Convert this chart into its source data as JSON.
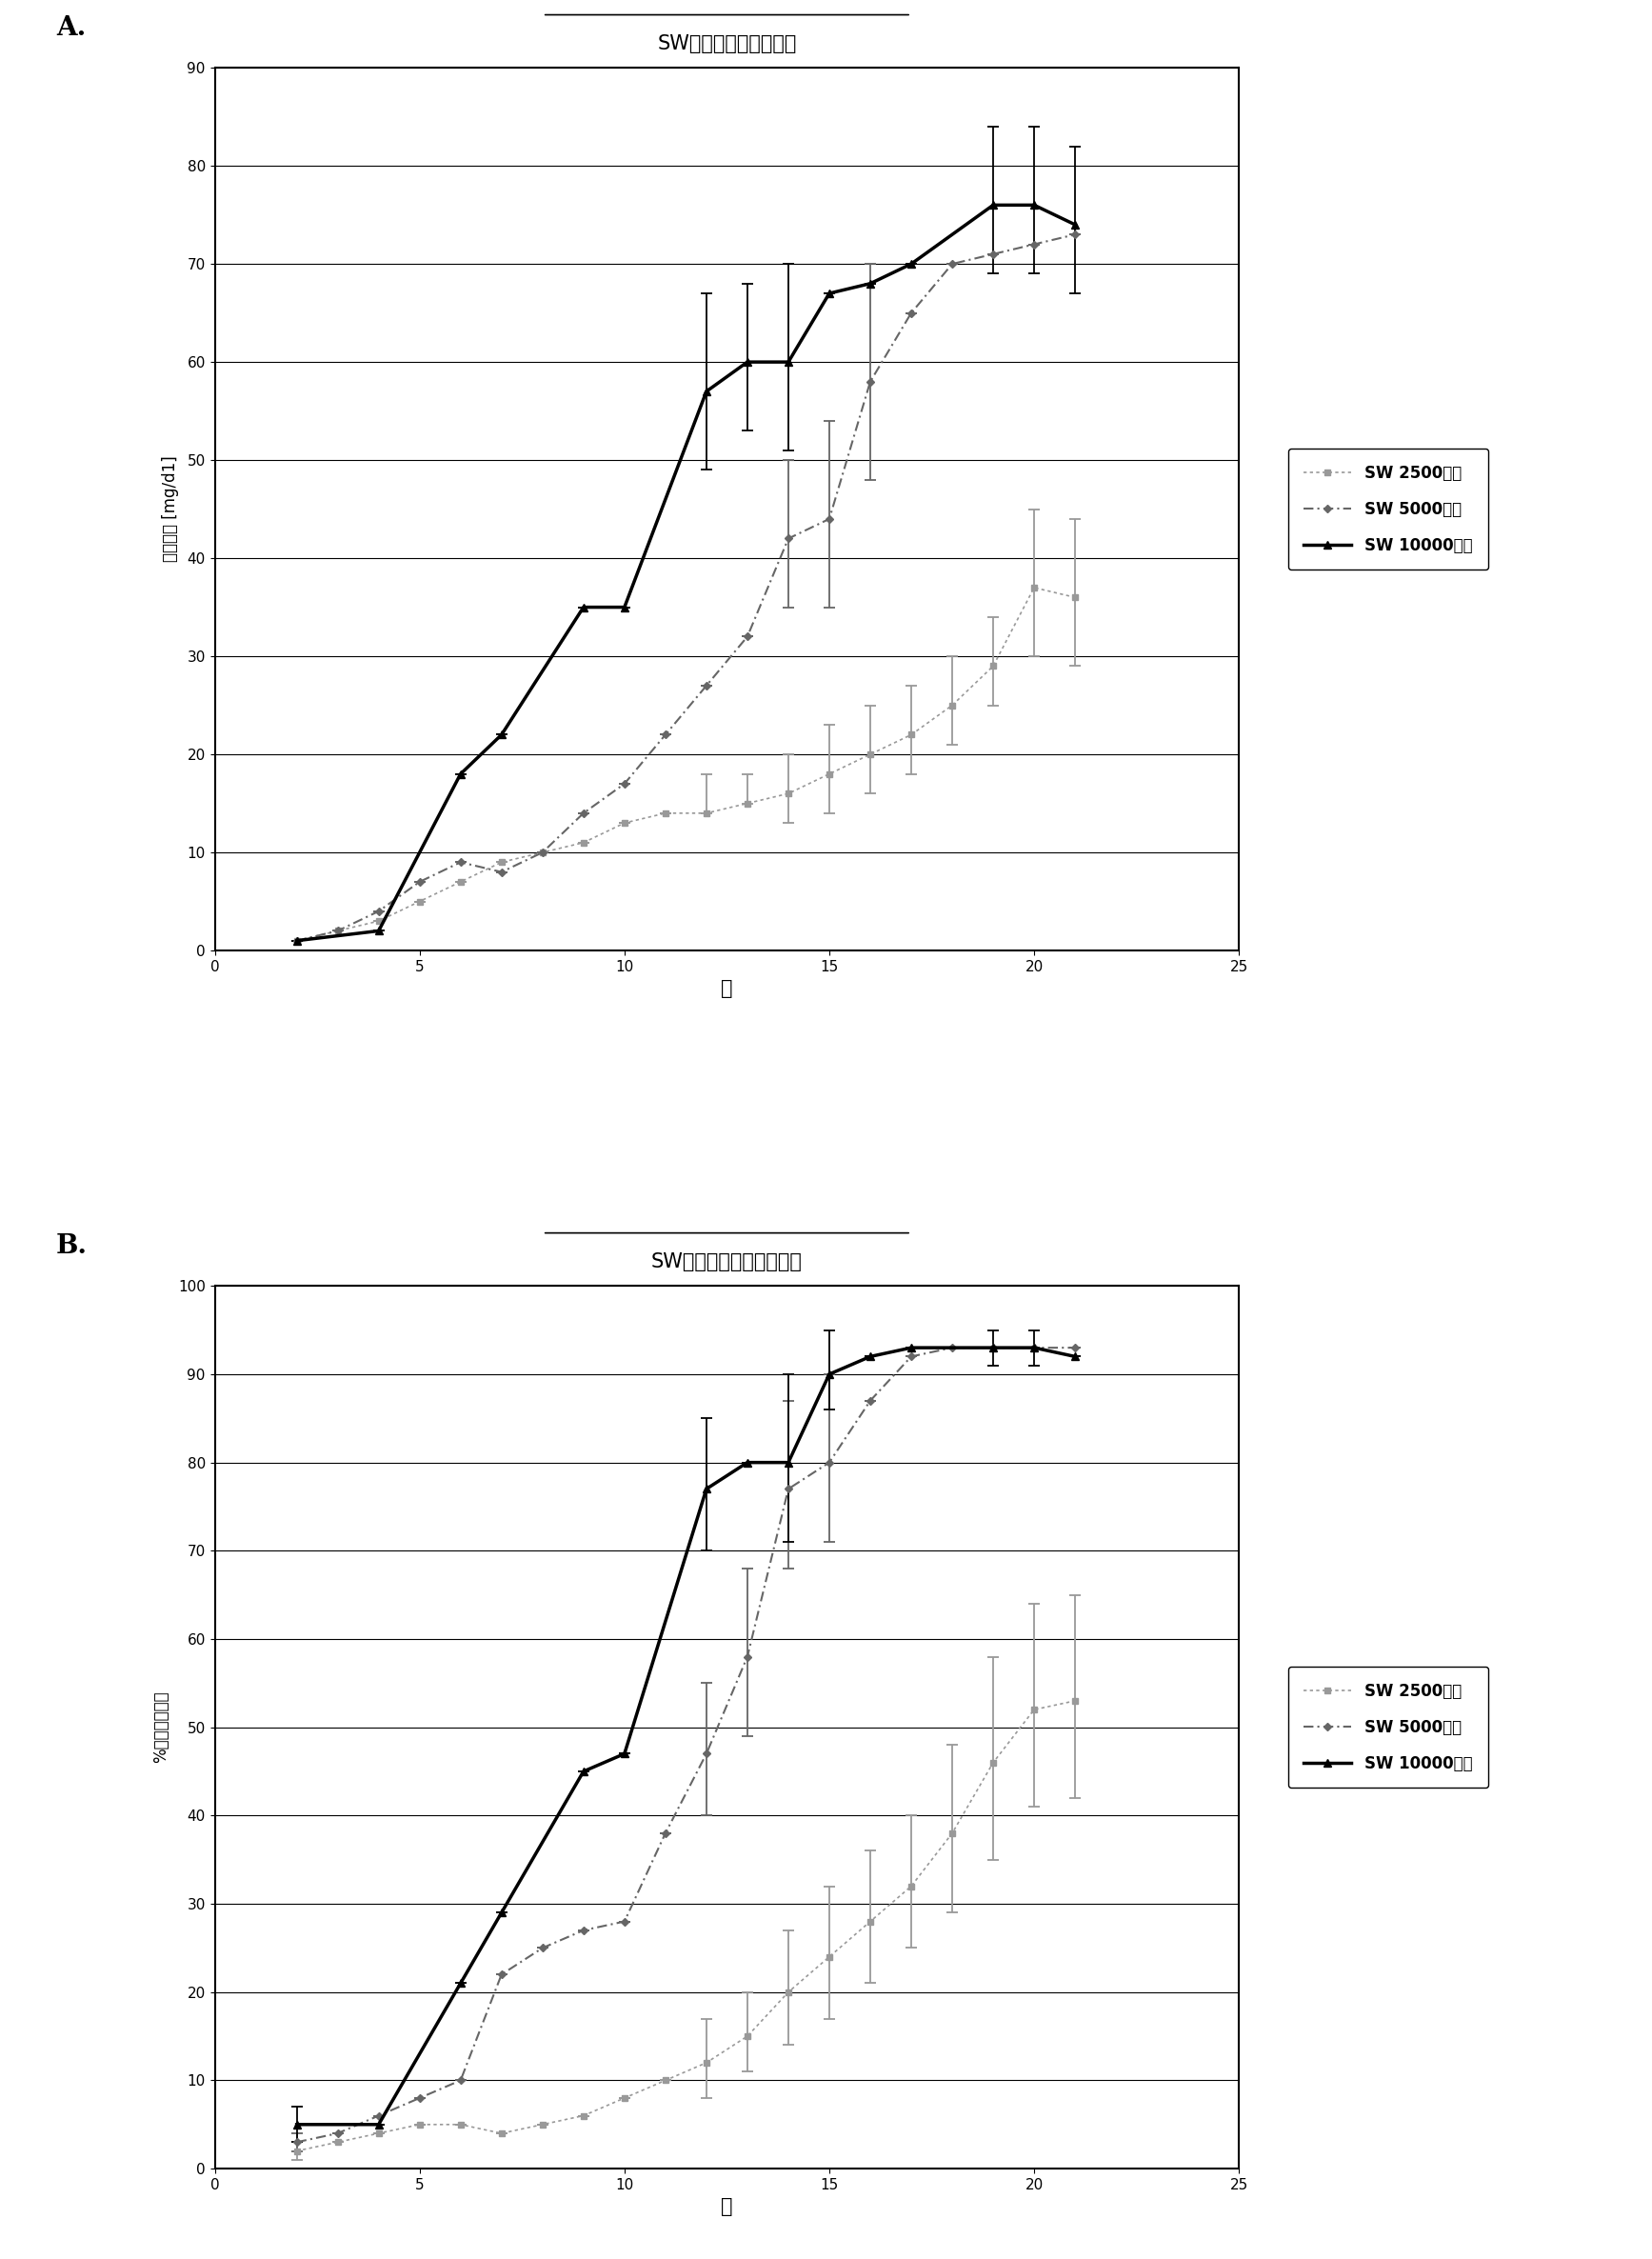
{
  "panel_A": {
    "title": "SW培养物中的乳酸释放",
    "xlabel": "天",
    "ylabel": "乳酸释放 [mg/d1]",
    "ylim": [
      0,
      90
    ],
    "xlim": [
      0,
      25
    ],
    "yticks": [
      0,
      10,
      20,
      30,
      40,
      50,
      60,
      70,
      80,
      90
    ],
    "xticks": [
      0,
      5,
      10,
      15,
      20,
      25
    ],
    "sw2500_x": [
      2,
      3,
      4,
      5,
      6,
      7,
      8,
      9,
      10,
      11,
      12,
      13,
      14,
      15,
      16,
      17,
      18,
      19,
      20,
      21
    ],
    "sw2500_y": [
      1,
      2,
      3,
      5,
      7,
      9,
      10,
      11,
      13,
      14,
      14,
      15,
      16,
      18,
      20,
      22,
      25,
      29,
      37,
      36
    ],
    "sw2500_yerr_lo": [
      0,
      0,
      0,
      0,
      0,
      0,
      0,
      0,
      0,
      0,
      0,
      0,
      3,
      4,
      4,
      4,
      4,
      4,
      7,
      7
    ],
    "sw2500_yerr_hi": [
      0,
      0,
      0,
      0,
      0,
      0,
      0,
      0,
      0,
      0,
      4,
      3,
      4,
      5,
      5,
      5,
      5,
      5,
      8,
      8
    ],
    "sw5000_x": [
      2,
      3,
      4,
      5,
      6,
      7,
      8,
      9,
      10,
      11,
      12,
      13,
      14,
      15,
      16,
      17,
      18,
      19,
      20,
      21
    ],
    "sw5000_y": [
      1,
      2,
      4,
      7,
      9,
      8,
      10,
      14,
      17,
      22,
      27,
      32,
      42,
      44,
      58,
      65,
      70,
      71,
      72,
      73
    ],
    "sw5000_yerr_lo": [
      0,
      0,
      0,
      0,
      0,
      0,
      0,
      0,
      0,
      0,
      0,
      0,
      7,
      9,
      10,
      0,
      0,
      0,
      0,
      0
    ],
    "sw5000_yerr_hi": [
      0,
      0,
      0,
      0,
      0,
      0,
      0,
      0,
      0,
      0,
      0,
      0,
      8,
      10,
      12,
      0,
      0,
      0,
      0,
      0
    ],
    "sw10000_x": [
      2,
      4,
      6,
      7,
      9,
      10,
      12,
      13,
      14,
      15,
      16,
      17,
      19,
      20,
      21
    ],
    "sw10000_y": [
      1,
      2,
      18,
      22,
      35,
      35,
      57,
      60,
      60,
      67,
      68,
      70,
      76,
      76,
      74
    ],
    "sw10000_yerr_lo": [
      0,
      0,
      0,
      0,
      0,
      0,
      8,
      7,
      9,
      0,
      0,
      0,
      7,
      7,
      7
    ],
    "sw10000_yerr_hi": [
      0,
      0,
      0,
      0,
      0,
      0,
      10,
      8,
      10,
      0,
      0,
      0,
      8,
      8,
      8
    ]
  },
  "panel_B": {
    "title": "SW培养物中的葡萄糖消耗",
    "xlabel": "天",
    "ylabel": "%所消耗葡萄糖",
    "ylim": [
      0,
      100
    ],
    "xlim": [
      0,
      25
    ],
    "yticks": [
      0,
      10,
      20,
      30,
      40,
      50,
      60,
      70,
      80,
      90,
      100
    ],
    "xticks": [
      0,
      5,
      10,
      15,
      20,
      25
    ],
    "sw2500_x": [
      2,
      3,
      4,
      5,
      6,
      7,
      8,
      9,
      10,
      11,
      12,
      13,
      14,
      15,
      16,
      17,
      18,
      19,
      20,
      21
    ],
    "sw2500_y": [
      2,
      3,
      4,
      5,
      5,
      4,
      5,
      6,
      8,
      10,
      12,
      15,
      20,
      24,
      28,
      32,
      38,
      46,
      52,
      53
    ],
    "sw2500_yerr_lo": [
      1,
      0,
      0,
      0,
      0,
      0,
      0,
      0,
      0,
      0,
      4,
      4,
      6,
      7,
      7,
      7,
      9,
      11,
      11,
      11
    ],
    "sw2500_yerr_hi": [
      1,
      0,
      0,
      0,
      0,
      0,
      0,
      0,
      0,
      0,
      5,
      5,
      7,
      8,
      8,
      8,
      10,
      12,
      12,
      12
    ],
    "sw5000_x": [
      2,
      3,
      4,
      5,
      6,
      7,
      8,
      9,
      10,
      11,
      12,
      13,
      14,
      15,
      16,
      17,
      18,
      19,
      20,
      21
    ],
    "sw5000_y": [
      3,
      4,
      6,
      8,
      10,
      22,
      25,
      27,
      28,
      38,
      47,
      58,
      77,
      80,
      87,
      92,
      93,
      93,
      93,
      93
    ],
    "sw5000_yerr_lo": [
      1,
      0,
      0,
      0,
      0,
      0,
      0,
      0,
      0,
      0,
      7,
      9,
      9,
      9,
      0,
      0,
      0,
      0,
      0,
      0
    ],
    "sw5000_yerr_hi": [
      1,
      0,
      0,
      0,
      0,
      0,
      0,
      0,
      0,
      0,
      8,
      10,
      10,
      10,
      0,
      0,
      0,
      0,
      0,
      0
    ],
    "sw10000_x": [
      2,
      4,
      6,
      7,
      9,
      10,
      12,
      13,
      14,
      15,
      16,
      17,
      19,
      20,
      21
    ],
    "sw10000_y": [
      5,
      5,
      21,
      29,
      45,
      47,
      77,
      80,
      80,
      90,
      92,
      93,
      93,
      93,
      92
    ],
    "sw10000_yerr_lo": [
      2,
      0,
      0,
      0,
      0,
      0,
      7,
      0,
      9,
      4,
      0,
      0,
      2,
      2,
      0
    ],
    "sw10000_yerr_hi": [
      2,
      0,
      0,
      0,
      0,
      0,
      8,
      0,
      10,
      5,
      0,
      0,
      2,
      2,
      0
    ]
  },
  "legend_A": [
    "SW 2500接种",
    "SW 5000接种",
    "SW 10000接种"
  ],
  "legend_B": [
    "SW 2500接种",
    "SW 5000接种",
    "SW 10000接种"
  ]
}
